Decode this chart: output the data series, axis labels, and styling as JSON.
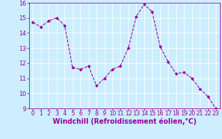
{
  "x": [
    0,
    1,
    2,
    3,
    4,
    5,
    6,
    7,
    8,
    9,
    10,
    11,
    12,
    13,
    14,
    15,
    16,
    17,
    18,
    19,
    20,
    21,
    22,
    23
  ],
  "y": [
    14.7,
    14.4,
    14.8,
    15.0,
    14.5,
    11.7,
    11.6,
    11.8,
    10.5,
    11.0,
    11.6,
    11.8,
    13.0,
    15.1,
    15.9,
    15.4,
    13.1,
    12.1,
    11.3,
    11.4,
    11.0,
    10.3,
    9.8,
    9.0
  ],
  "ylim": [
    9,
    16
  ],
  "xlim": [
    -0.5,
    23.5
  ],
  "yticks": [
    9,
    10,
    11,
    12,
    13,
    14,
    15,
    16
  ],
  "xticks": [
    0,
    1,
    2,
    3,
    4,
    5,
    6,
    7,
    8,
    9,
    10,
    11,
    12,
    13,
    14,
    15,
    16,
    17,
    18,
    19,
    20,
    21,
    22,
    23
  ],
  "xlabel": "Windchill (Refroidissement éolien,°C)",
  "line_color": "#990099",
  "marker": "D",
  "marker_size": 2,
  "bg_color": "#cceeff",
  "grid_color": "#ffffff",
  "tick_label_color": "#990099",
  "xlabel_color": "#990099",
  "tick_fontsize": 6,
  "xlabel_fontsize": 7,
  "xlabel_fontweight": "bold"
}
